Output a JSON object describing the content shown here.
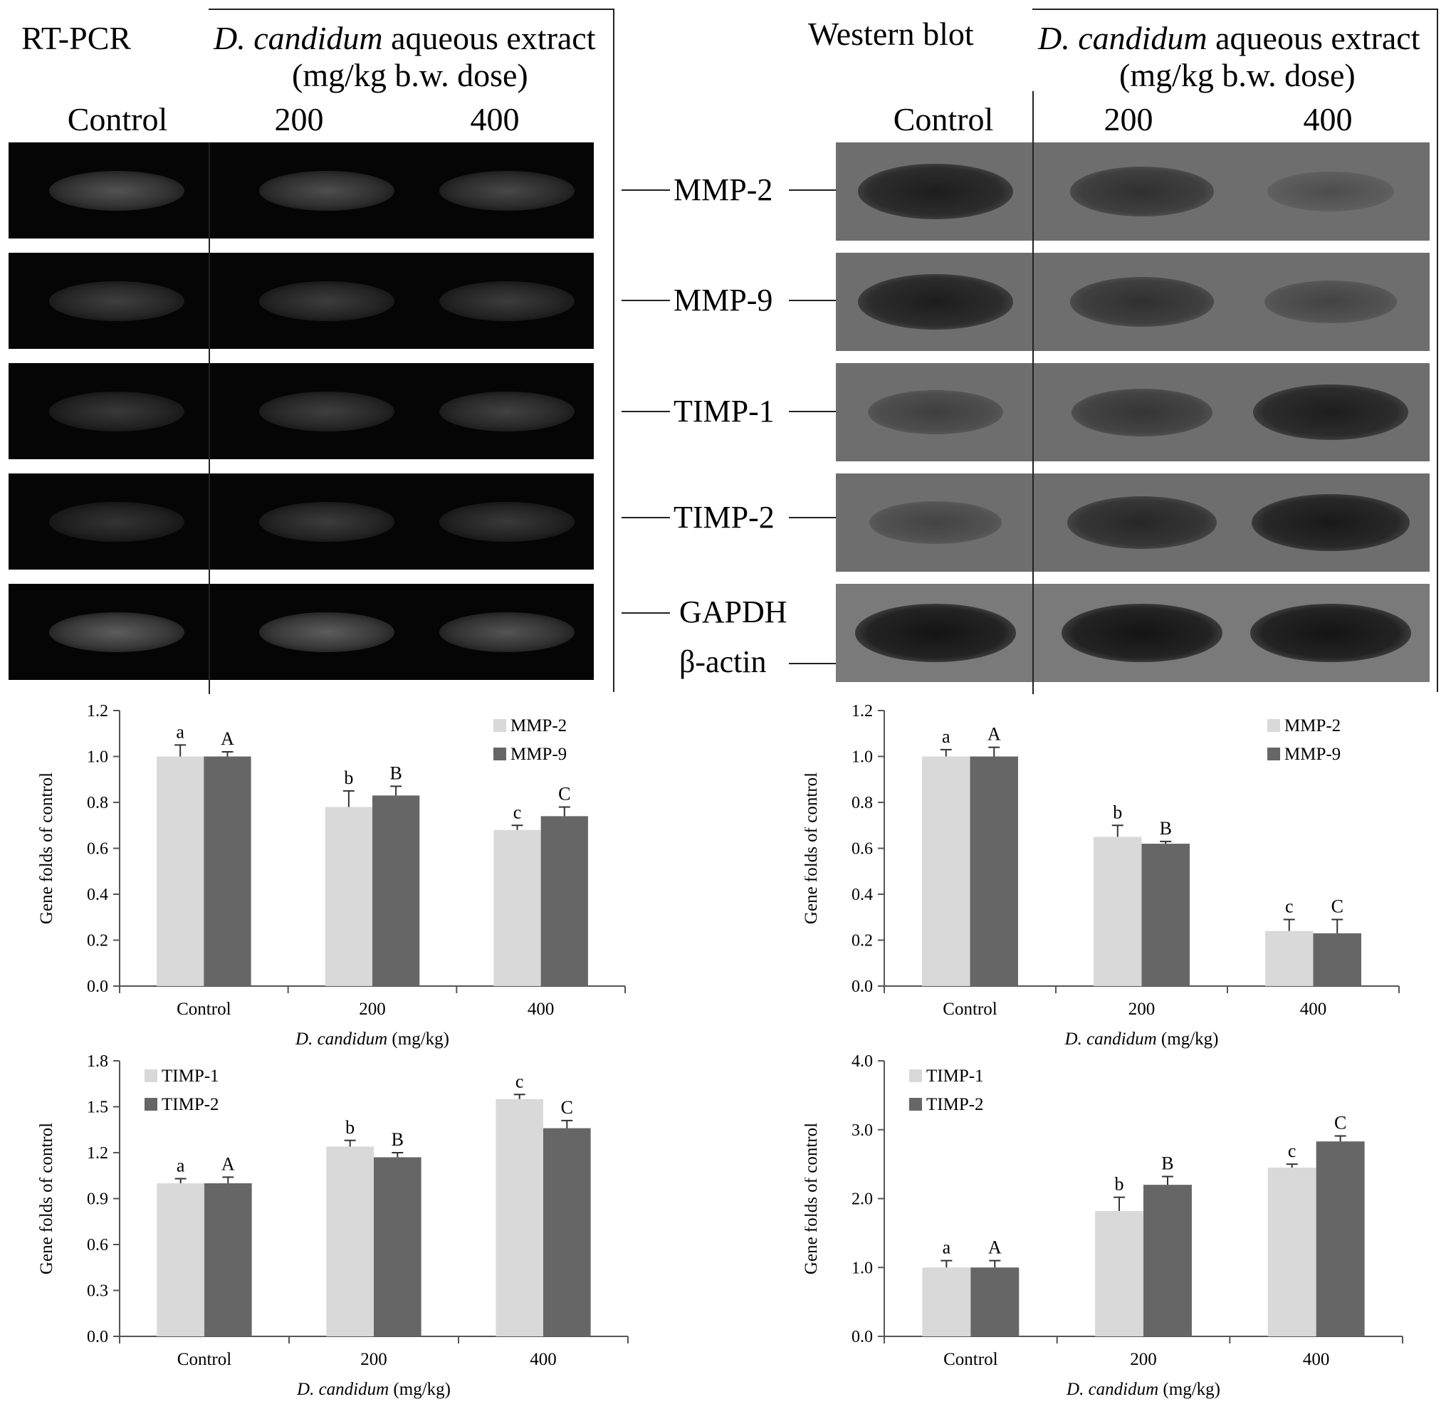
{
  "figure": {
    "rtpcr_title": "RT-PCR",
    "western_title": "Western blot",
    "treatment_header_italic": "D. candidum",
    "treatment_header_rest": " aqueous extract",
    "treatment_header_line2": "(mg/kg b.w. dose)",
    "lanes": [
      "Control",
      "200",
      "400"
    ],
    "band_labels": [
      "MMP-2",
      "MMP-9",
      "TIMP-1",
      "TIMP-2",
      "GAPDH",
      "β-actin"
    ]
  },
  "gel": {
    "rows": [
      {
        "name": "MMP-2",
        "intensity": [
          0.55,
          0.52,
          0.48
        ]
      },
      {
        "name": "MMP-9",
        "intensity": [
          0.42,
          0.4,
          0.4
        ]
      },
      {
        "name": "TIMP-1",
        "intensity": [
          0.38,
          0.42,
          0.44
        ]
      },
      {
        "name": "TIMP-2",
        "intensity": [
          0.34,
          0.4,
          0.38
        ]
      },
      {
        "name": "GAPDH",
        "intensity": [
          0.62,
          0.62,
          0.56
        ]
      }
    ]
  },
  "blot": {
    "rows": [
      {
        "name": "MMP-2",
        "intensity": [
          0.85,
          0.65,
          0.35
        ]
      },
      {
        "name": "MMP-9",
        "intensity": [
          0.85,
          0.65,
          0.45
        ]
      },
      {
        "name": "TIMP-1",
        "intensity": [
          0.5,
          0.6,
          0.85
        ]
      },
      {
        "name": "TIMP-2",
        "intensity": [
          0.45,
          0.75,
          0.9
        ]
      },
      {
        "name": "β-actin",
        "intensity": [
          0.95,
          0.95,
          0.95
        ]
      }
    ]
  },
  "chart_data": [
    {
      "type": "bar",
      "categories": [
        "Control",
        "200",
        "400"
      ],
      "series": [
        {
          "name": "MMP-2",
          "values": [
            1.0,
            0.78,
            0.68
          ],
          "errors": [
            0.05,
            0.07,
            0.02
          ],
          "letters": [
            "a",
            "b",
            "c"
          ],
          "color": "#d9d9d9"
        },
        {
          "name": "MMP-9",
          "values": [
            1.0,
            0.83,
            0.74
          ],
          "errors": [
            0.02,
            0.04,
            0.04
          ],
          "letters": [
            "A",
            "B",
            "C"
          ],
          "color": "#666666"
        }
      ],
      "ylabel": "Gene folds of control",
      "xlabel_italic": "D. candidum",
      "xlabel_rest": " (mg/kg)",
      "ylim": [
        0,
        1.2
      ],
      "yticks": [
        "0.0",
        "0.2",
        "0.4",
        "0.6",
        "0.8",
        "1.0",
        "1.2"
      ],
      "legend_position": "top-right",
      "grid": false
    },
    {
      "type": "bar",
      "categories": [
        "Control",
        "200",
        "400"
      ],
      "series": [
        {
          "name": "MMP-2",
          "values": [
            1.0,
            0.65,
            0.24
          ],
          "errors": [
            0.03,
            0.05,
            0.05
          ],
          "letters": [
            "a",
            "b",
            "c"
          ],
          "color": "#d9d9d9"
        },
        {
          "name": "MMP-9",
          "values": [
            1.0,
            0.62,
            0.23
          ],
          "errors": [
            0.04,
            0.01,
            0.06
          ],
          "letters": [
            "A",
            "B",
            "C"
          ],
          "color": "#666666"
        }
      ],
      "ylabel": "Gene folds of control",
      "xlabel_italic": "D. candidum",
      "xlabel_rest": " (mg/kg)",
      "ylim": [
        0,
        1.2
      ],
      "yticks": [
        "0.0",
        "0.2",
        "0.4",
        "0.6",
        "0.8",
        "1.0",
        "1.2"
      ],
      "legend_position": "top-right",
      "grid": false
    },
    {
      "type": "bar",
      "categories": [
        "Control",
        "200",
        "400"
      ],
      "series": [
        {
          "name": "TIMP-1",
          "values": [
            1.0,
            1.24,
            1.55
          ],
          "errors": [
            0.03,
            0.04,
            0.03
          ],
          "letters": [
            "a",
            "b",
            "c"
          ],
          "color": "#d9d9d9"
        },
        {
          "name": "TIMP-2",
          "values": [
            1.0,
            1.17,
            1.36
          ],
          "errors": [
            0.04,
            0.03,
            0.05
          ],
          "letters": [
            "A",
            "B",
            "C"
          ],
          "color": "#666666"
        }
      ],
      "ylabel": "Gene folds of control",
      "xlabel_italic": "D. candidum",
      "xlabel_rest": " (mg/kg)",
      "ylim": [
        0,
        1.8
      ],
      "yticks": [
        "0.0",
        "0.3",
        "0.6",
        "0.9",
        "1.2",
        "1.5",
        "1.8"
      ],
      "legend_position": "top-left",
      "grid": false
    },
    {
      "type": "bar",
      "categories": [
        "Control",
        "200",
        "400"
      ],
      "series": [
        {
          "name": "TIMP-1",
          "values": [
            1.0,
            1.82,
            2.45
          ],
          "errors": [
            0.1,
            0.2,
            0.05
          ],
          "letters": [
            "a",
            "b",
            "c"
          ],
          "color": "#d9d9d9"
        },
        {
          "name": "TIMP-2",
          "values": [
            1.0,
            2.2,
            2.83
          ],
          "errors": [
            0.1,
            0.12,
            0.08
          ],
          "letters": [
            "A",
            "B",
            "C"
          ],
          "color": "#666666"
        }
      ],
      "ylabel": "Gene folds of control",
      "xlabel_italic": "D. candidum",
      "xlabel_rest": " (mg/kg)",
      "ylim": [
        0,
        4.0
      ],
      "yticks": [
        "0.0",
        "1.0",
        "2.0",
        "3.0",
        "4.0"
      ],
      "legend_position": "top-left",
      "grid": false
    }
  ]
}
